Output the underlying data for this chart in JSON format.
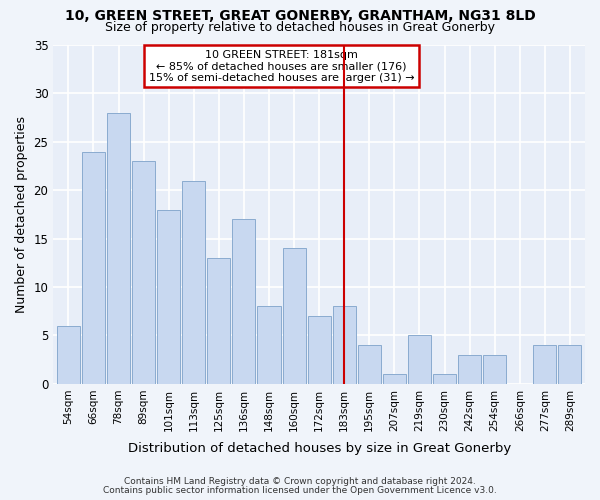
{
  "title1": "10, GREEN STREET, GREAT GONERBY, GRANTHAM, NG31 8LD",
  "title2": "Size of property relative to detached houses in Great Gonerby",
  "xlabel": "Distribution of detached houses by size in Great Gonerby",
  "ylabel": "Number of detached properties",
  "categories": [
    "54sqm",
    "66sqm",
    "78sqm",
    "89sqm",
    "101sqm",
    "113sqm",
    "125sqm",
    "136sqm",
    "148sqm",
    "160sqm",
    "172sqm",
    "183sqm",
    "195sqm",
    "207sqm",
    "219sqm",
    "230sqm",
    "242sqm",
    "254sqm",
    "266sqm",
    "277sqm",
    "289sqm"
  ],
  "values": [
    6,
    24,
    28,
    23,
    18,
    21,
    13,
    17,
    8,
    14,
    7,
    8,
    4,
    1,
    5,
    1,
    3,
    3,
    0,
    4,
    4
  ],
  "bar_color": "#c8d8f0",
  "bar_edge_color": "#8aabcf",
  "vline_x_index": 11,
  "vline_color": "#cc0000",
  "annotation_title": "10 GREEN STREET: 181sqm",
  "annotation_line2": "← 85% of detached houses are smaller (176)",
  "annotation_line3": "15% of semi-detached houses are larger (31) →",
  "annotation_box_color": "#cc0000",
  "annotation_bg": "#ffffff",
  "ylim": [
    0,
    35
  ],
  "yticks": [
    0,
    5,
    10,
    15,
    20,
    25,
    30,
    35
  ],
  "footnote1": "Contains HM Land Registry data © Crown copyright and database right 2024.",
  "footnote2": "Contains public sector information licensed under the Open Government Licence v3.0.",
  "bg_color": "#e8eef8",
  "plot_bg_color": "#e8eef8",
  "grid_color": "#ffffff"
}
